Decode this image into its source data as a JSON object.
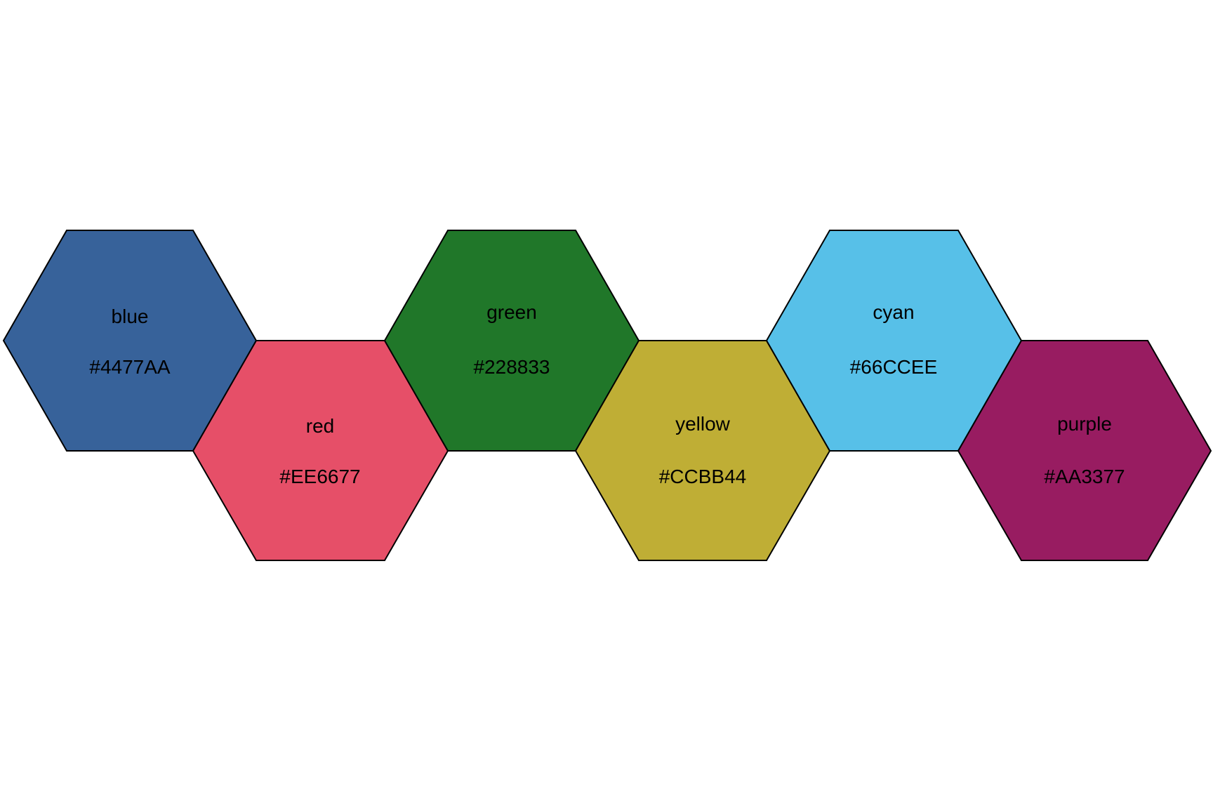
{
  "palette": {
    "swatches": [
      {
        "name": "blue",
        "hex": "#4477AA",
        "fill": "#37629A"
      },
      {
        "name": "red",
        "hex": "#EE6677",
        "fill": "#E64F68"
      },
      {
        "name": "green",
        "hex": "#228833",
        "fill": "#207729"
      },
      {
        "name": "yellow",
        "hex": "#CCBB44",
        "fill": "#BFAE35"
      },
      {
        "name": "cyan",
        "hex": "#66CCEE",
        "fill": "#57C0E8"
      },
      {
        "name": "purple",
        "hex": "#AA3377",
        "fill": "#981C61"
      }
    ]
  }
}
